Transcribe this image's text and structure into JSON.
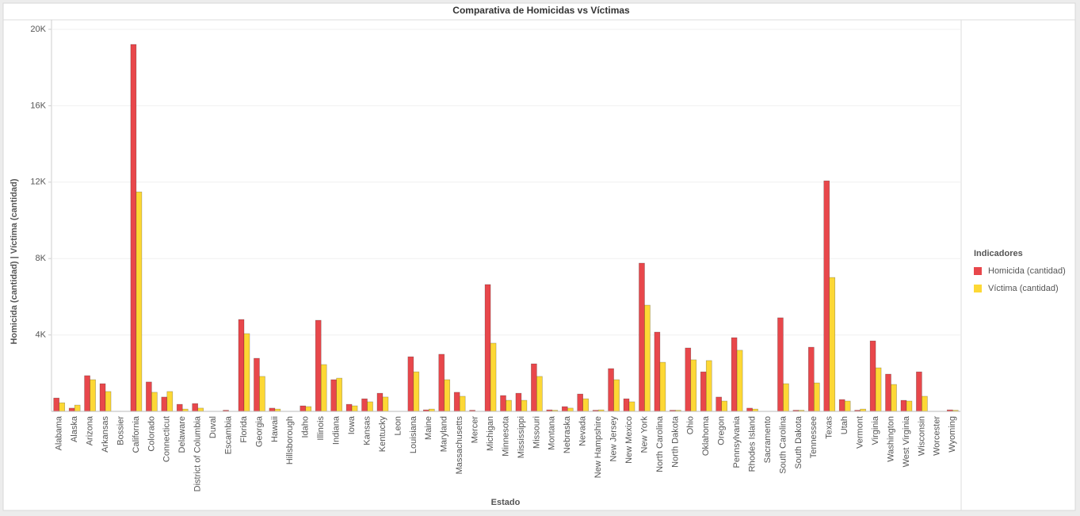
{
  "chart_data": {
    "type": "bar",
    "title": "Comparativa de Homicidas vs Víctimas",
    "x_label": "Estado",
    "y_label": "Homicida (cantidad)  |  Víctima (cantidad)",
    "legend_title": "Indicadores",
    "legend": "right",
    "grid": true,
    "categories": [
      "Alabama",
      "Alaska",
      "Arizona",
      "Arkansas",
      "Bossier",
      "California",
      "Colorado",
      "Connecticut",
      "Delaware",
      "District of Columbia",
      "Duval",
      "Escambia",
      "Florida",
      "Georgia",
      "Hawaii",
      "Hillsborough",
      "Idaho",
      "Illinois",
      "Indiana",
      "Iowa",
      "Kansas",
      "Kentucky",
      "Leon",
      "Louisiana",
      "Maine",
      "Maryland",
      "Massachusetts",
      "Mercer",
      "Michigan",
      "Minnesota",
      "Mississippi",
      "Missouri",
      "Montana",
      "Nebraska",
      "Nevada",
      "New Hampshire",
      "New Jersey",
      "New Mexico",
      "New York",
      "North Carolina",
      "North Dakota",
      "Ohio",
      "Oklahoma",
      "Oregon",
      "Pennsylvania",
      "Rhodes Island",
      "Sacramento",
      "South Carolina",
      "South Dakota",
      "Tennessee",
      "Texas",
      "Utah",
      "Vermont",
      "Virginia",
      "Washington",
      "West Virginia",
      "Wisconsin",
      "Worcester",
      "Wyoming"
    ],
    "series": [
      {
        "name": "Homicida (cantidad)",
        "color": "#e8474b",
        "values": [
          700,
          170,
          1870,
          1450,
          10,
          19210,
          1540,
          750,
          370,
          410,
          5,
          60,
          4810,
          2780,
          170,
          0,
          290,
          4770,
          1660,
          370,
          660,
          950,
          0,
          2860,
          80,
          2990,
          1000,
          60,
          6640,
          830,
          950,
          2490,
          80,
          250,
          910,
          60,
          2240,
          660,
          7760,
          4150,
          60,
          3320,
          2070,
          750,
          3860,
          170,
          0,
          4900,
          60,
          3360,
          12070,
          620,
          60,
          3690,
          1950,
          580,
          2070,
          0,
          80
        ]
      },
      {
        "name": "Víctima (cantidad)",
        "color": "#fdd835",
        "values": [
          450,
          330,
          1660,
          1040,
          0,
          11490,
          1000,
          1040,
          120,
          170,
          0,
          0,
          4070,
          1830,
          120,
          0,
          250,
          2450,
          1740,
          290,
          500,
          750,
          0,
          2070,
          120,
          1660,
          790,
          0,
          3570,
          580,
          580,
          1830,
          60,
          170,
          660,
          80,
          1660,
          500,
          5560,
          2570,
          60,
          2700,
          2660,
          540,
          3200,
          120,
          0,
          1450,
          60,
          1490,
          7010,
          540,
          120,
          2280,
          1410,
          540,
          790,
          0,
          60
        ]
      }
    ],
    "ylim": [
      0,
      20000
    ],
    "yticks": [
      {
        "value": 4000,
        "label": "4K"
      },
      {
        "value": 8000,
        "label": "8K"
      },
      {
        "value": 12000,
        "label": "12K"
      },
      {
        "value": 16000,
        "label": "16K"
      },
      {
        "value": 20000,
        "label": "20K"
      }
    ]
  }
}
